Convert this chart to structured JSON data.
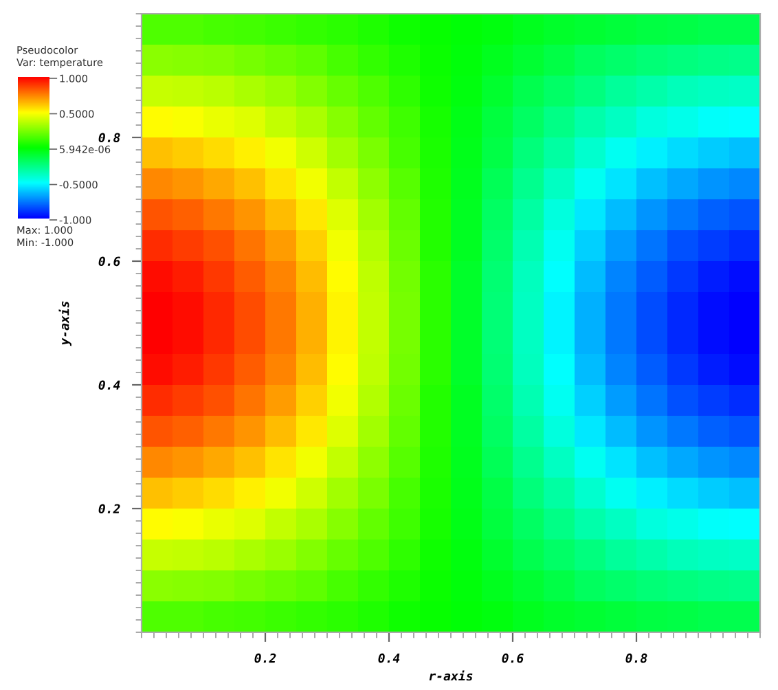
{
  "chart_data": {
    "type": "heatmap",
    "title": "Pseudocolor",
    "clabel": "Var: temperature",
    "xlabel": "r-axis",
    "ylabel": "y-axis",
    "xlim": [
      0,
      1
    ],
    "ylim": [
      0,
      1
    ],
    "xticks": [
      0.2,
      0.4,
      0.6,
      0.8
    ],
    "yticks": [
      0.2,
      0.4,
      0.6,
      0.8
    ],
    "clim": [
      -1,
      1
    ],
    "cticks": [
      {
        "value": 1,
        "label": "1.000"
      },
      {
        "value": 0.5,
        "label": "0.5000"
      },
      {
        "value": 5.942e-06,
        "label": "5.942e-06"
      },
      {
        "value": -0.5,
        "label": "-0.5000"
      },
      {
        "value": -1,
        "label": "-1.000"
      }
    ],
    "annotations": [
      "Max: 1.000",
      "Min: -1.000"
    ],
    "grid": false,
    "cells": [
      [
        0.15,
        0.15,
        0.14,
        0.13,
        0.11,
        0.1,
        0.08,
        0.06,
        0.03,
        0.01,
        -0.01,
        -0.03,
        -0.06,
        -0.08,
        -0.1,
        -0.11,
        -0.13,
        -0.14,
        -0.15,
        -0.15
      ],
      [
        0.27,
        0.26,
        0.25,
        0.23,
        0.21,
        0.18,
        0.14,
        0.1,
        0.06,
        0.02,
        -0.02,
        -0.06,
        -0.1,
        -0.14,
        -0.18,
        -0.21,
        -0.23,
        -0.25,
        -0.26,
        -0.27
      ],
      [
        0.39,
        0.38,
        0.36,
        0.33,
        0.3,
        0.25,
        0.2,
        0.15,
        0.09,
        0.03,
        -0.03,
        -0.09,
        -0.15,
        -0.2,
        -0.25,
        -0.3,
        -0.33,
        -0.36,
        -0.38,
        -0.39
      ],
      [
        0.5,
        0.49,
        0.46,
        0.43,
        0.38,
        0.33,
        0.26,
        0.19,
        0.12,
        0.04,
        -0.04,
        -0.12,
        -0.19,
        -0.26,
        -0.33,
        -0.38,
        -0.43,
        -0.46,
        -0.49,
        -0.5
      ],
      [
        0.62,
        0.6,
        0.57,
        0.53,
        0.47,
        0.4,
        0.32,
        0.24,
        0.14,
        0.05,
        -0.05,
        -0.14,
        -0.24,
        -0.32,
        -0.4,
        -0.47,
        -0.53,
        -0.57,
        -0.6,
        -0.62
      ],
      [
        0.73,
        0.71,
        0.67,
        0.62,
        0.55,
        0.47,
        0.38,
        0.28,
        0.17,
        0.06,
        -0.06,
        -0.17,
        -0.28,
        -0.38,
        -0.47,
        -0.55,
        -0.62,
        -0.67,
        -0.71,
        -0.73
      ],
      [
        0.83,
        0.81,
        0.76,
        0.71,
        0.63,
        0.54,
        0.43,
        0.32,
        0.19,
        0.07,
        -0.07,
        -0.19,
        -0.32,
        -0.43,
        -0.54,
        -0.63,
        -0.71,
        -0.76,
        -0.81,
        -0.83
      ],
      [
        0.91,
        0.88,
        0.84,
        0.77,
        0.69,
        0.59,
        0.47,
        0.35,
        0.21,
        0.07,
        -0.07,
        -0.21,
        -0.35,
        -0.47,
        -0.59,
        -0.69,
        -0.77,
        -0.84,
        -0.88,
        -0.91
      ],
      [
        0.97,
        0.94,
        0.89,
        0.82,
        0.74,
        0.63,
        0.5,
        0.37,
        0.22,
        0.08,
        -0.08,
        -0.22,
        -0.37,
        -0.5,
        -0.63,
        -0.74,
        -0.82,
        -0.89,
        -0.94,
        -0.97
      ],
      [
        1.0,
        0.97,
        0.92,
        0.85,
        0.76,
        0.65,
        0.52,
        0.38,
        0.23,
        0.08,
        -0.08,
        -0.23,
        -0.38,
        -0.52,
        -0.65,
        -0.76,
        -0.85,
        -0.92,
        -0.97,
        -1.0
      ],
      [
        1.0,
        0.97,
        0.92,
        0.85,
        0.76,
        0.65,
        0.52,
        0.38,
        0.23,
        0.08,
        -0.08,
        -0.23,
        -0.38,
        -0.52,
        -0.65,
        -0.76,
        -0.85,
        -0.92,
        -0.97,
        -1.0
      ],
      [
        0.97,
        0.94,
        0.89,
        0.82,
        0.74,
        0.63,
        0.5,
        0.37,
        0.22,
        0.08,
        -0.08,
        -0.22,
        -0.37,
        -0.5,
        -0.63,
        -0.74,
        -0.82,
        -0.89,
        -0.94,
        -0.97
      ],
      [
        0.91,
        0.88,
        0.84,
        0.77,
        0.69,
        0.59,
        0.47,
        0.35,
        0.21,
        0.07,
        -0.07,
        -0.21,
        -0.35,
        -0.47,
        -0.59,
        -0.69,
        -0.77,
        -0.84,
        -0.88,
        -0.91
      ],
      [
        0.83,
        0.81,
        0.76,
        0.71,
        0.63,
        0.54,
        0.43,
        0.32,
        0.19,
        0.07,
        -0.07,
        -0.19,
        -0.32,
        -0.43,
        -0.54,
        -0.63,
        -0.71,
        -0.76,
        -0.81,
        -0.83
      ],
      [
        0.73,
        0.71,
        0.67,
        0.62,
        0.55,
        0.47,
        0.38,
        0.28,
        0.17,
        0.06,
        -0.06,
        -0.17,
        -0.28,
        -0.38,
        -0.47,
        -0.55,
        -0.62,
        -0.67,
        -0.71,
        -0.73
      ],
      [
        0.62,
        0.6,
        0.57,
        0.53,
        0.47,
        0.4,
        0.32,
        0.24,
        0.14,
        0.05,
        -0.05,
        -0.14,
        -0.24,
        -0.32,
        -0.4,
        -0.47,
        -0.53,
        -0.57,
        -0.6,
        -0.62
      ],
      [
        0.5,
        0.49,
        0.46,
        0.43,
        0.38,
        0.33,
        0.26,
        0.19,
        0.12,
        0.04,
        -0.04,
        -0.12,
        -0.19,
        -0.26,
        -0.33,
        -0.38,
        -0.43,
        -0.46,
        -0.49,
        -0.5
      ],
      [
        0.39,
        0.38,
        0.36,
        0.33,
        0.3,
        0.25,
        0.2,
        0.15,
        0.09,
        0.03,
        -0.03,
        -0.09,
        -0.15,
        -0.2,
        -0.25,
        -0.3,
        -0.33,
        -0.36,
        -0.38,
        -0.39
      ],
      [
        0.27,
        0.26,
        0.25,
        0.23,
        0.21,
        0.18,
        0.14,
        0.1,
        0.06,
        0.02,
        -0.02,
        -0.06,
        -0.1,
        -0.14,
        -0.18,
        -0.21,
        -0.23,
        -0.25,
        -0.26,
        -0.27
      ],
      [
        0.15,
        0.15,
        0.14,
        0.13,
        0.11,
        0.1,
        0.08,
        0.06,
        0.03,
        0.01,
        -0.01,
        -0.03,
        -0.06,
        -0.08,
        -0.1,
        -0.11,
        -0.13,
        -0.14,
        -0.15,
        -0.15
      ]
    ]
  }
}
